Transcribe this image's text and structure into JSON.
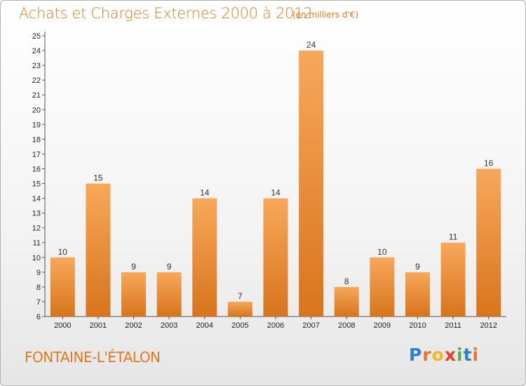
{
  "chart_data": {
    "type": "bar",
    "title": "Achats et Charges Externes 2000 à 2012",
    "subtitle": "(en milliers d'€)",
    "categories": [
      "2000",
      "2001",
      "2002",
      "2003",
      "2004",
      "2005",
      "2006",
      "2007",
      "2008",
      "2009",
      "2010",
      "2011",
      "2012"
    ],
    "values": [
      10,
      15,
      9,
      9,
      14,
      7,
      14,
      24,
      8,
      10,
      9,
      11,
      16
    ],
    "ylim": [
      6,
      25
    ],
    "yticks": [
      6,
      7,
      8,
      9,
      10,
      11,
      12,
      13,
      14,
      15,
      16,
      17,
      18,
      19,
      20,
      21,
      22,
      23,
      24,
      25
    ],
    "xlabel": "",
    "ylabel": "",
    "grid": false,
    "legend": "none",
    "bar_color": "#f0923a",
    "bar_color_light": "#f7a85a",
    "bar_color_dark": "#d8741c"
  },
  "footer": {
    "location": "FONTAINE-L'ÉTALON",
    "brand_letters": [
      "P",
      "r",
      "o",
      "x",
      "i",
      "t",
      "i"
    ],
    "brand_colors": [
      "#2d7fd0",
      "#e8732a",
      "#f2b81e",
      "#e83a2e",
      "#5aae3c",
      "#2d7fd0",
      "#e8732a"
    ]
  }
}
